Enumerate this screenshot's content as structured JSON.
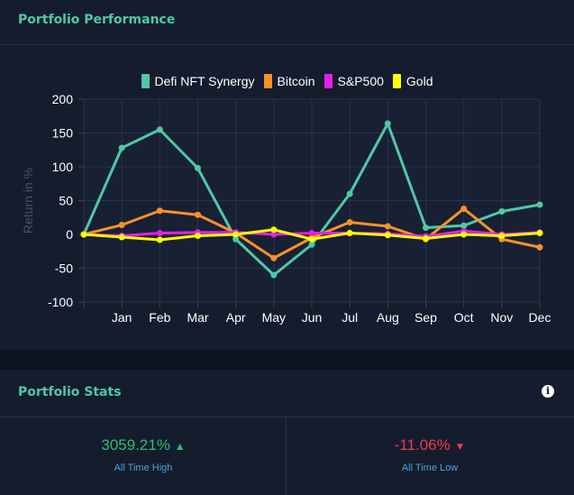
{
  "performance": {
    "title": "Portfolio Performance"
  },
  "stats": {
    "title": "Portfolio Stats",
    "info_icon": "info-icon",
    "high": {
      "value": "3059.21%",
      "arrow": "▲",
      "label": "All Time High",
      "color": "#27c26c"
    },
    "low": {
      "value": "-11.06%",
      "arrow": "▼",
      "label": "All Time Low",
      "color": "#ef3a4d"
    }
  },
  "chart_data": {
    "type": "line",
    "title": "",
    "xlabel": "",
    "ylabel": "Return in %",
    "ylim": [
      -100,
      200
    ],
    "yticks": [
      -100,
      -50,
      0,
      50,
      100,
      150,
      200
    ],
    "grid": true,
    "legend_position": "top",
    "x": [
      "",
      "Jan",
      "Feb",
      "Mar",
      "Apr",
      "May",
      "Jun",
      "Jul",
      "Aug",
      "Sep",
      "Oct",
      "Nov",
      "Dec"
    ],
    "series": [
      {
        "name": "Defi NFT Synergy",
        "color": "#4fc9a4",
        "values": [
          0,
          128,
          155,
          98,
          -7,
          -60,
          -15,
          60,
          164,
          10,
          13,
          34,
          44
        ]
      },
      {
        "name": "Bitcoin",
        "color": "#f5922b",
        "values": [
          0,
          14,
          35,
          29,
          2,
          -35,
          -5,
          18,
          12,
          -7,
          38,
          -7,
          -19
        ]
      },
      {
        "name": "S&P500",
        "color": "#e321e6",
        "values": [
          0,
          -2,
          2,
          3,
          3,
          0,
          2,
          2,
          1,
          -3,
          5,
          0,
          3
        ]
      },
      {
        "name": "Gold",
        "color": "#ffff00",
        "values": [
          0,
          -4,
          -8,
          -2,
          0,
          7,
          -7,
          2,
          -1,
          -6,
          0,
          -2,
          2
        ]
      }
    ]
  }
}
